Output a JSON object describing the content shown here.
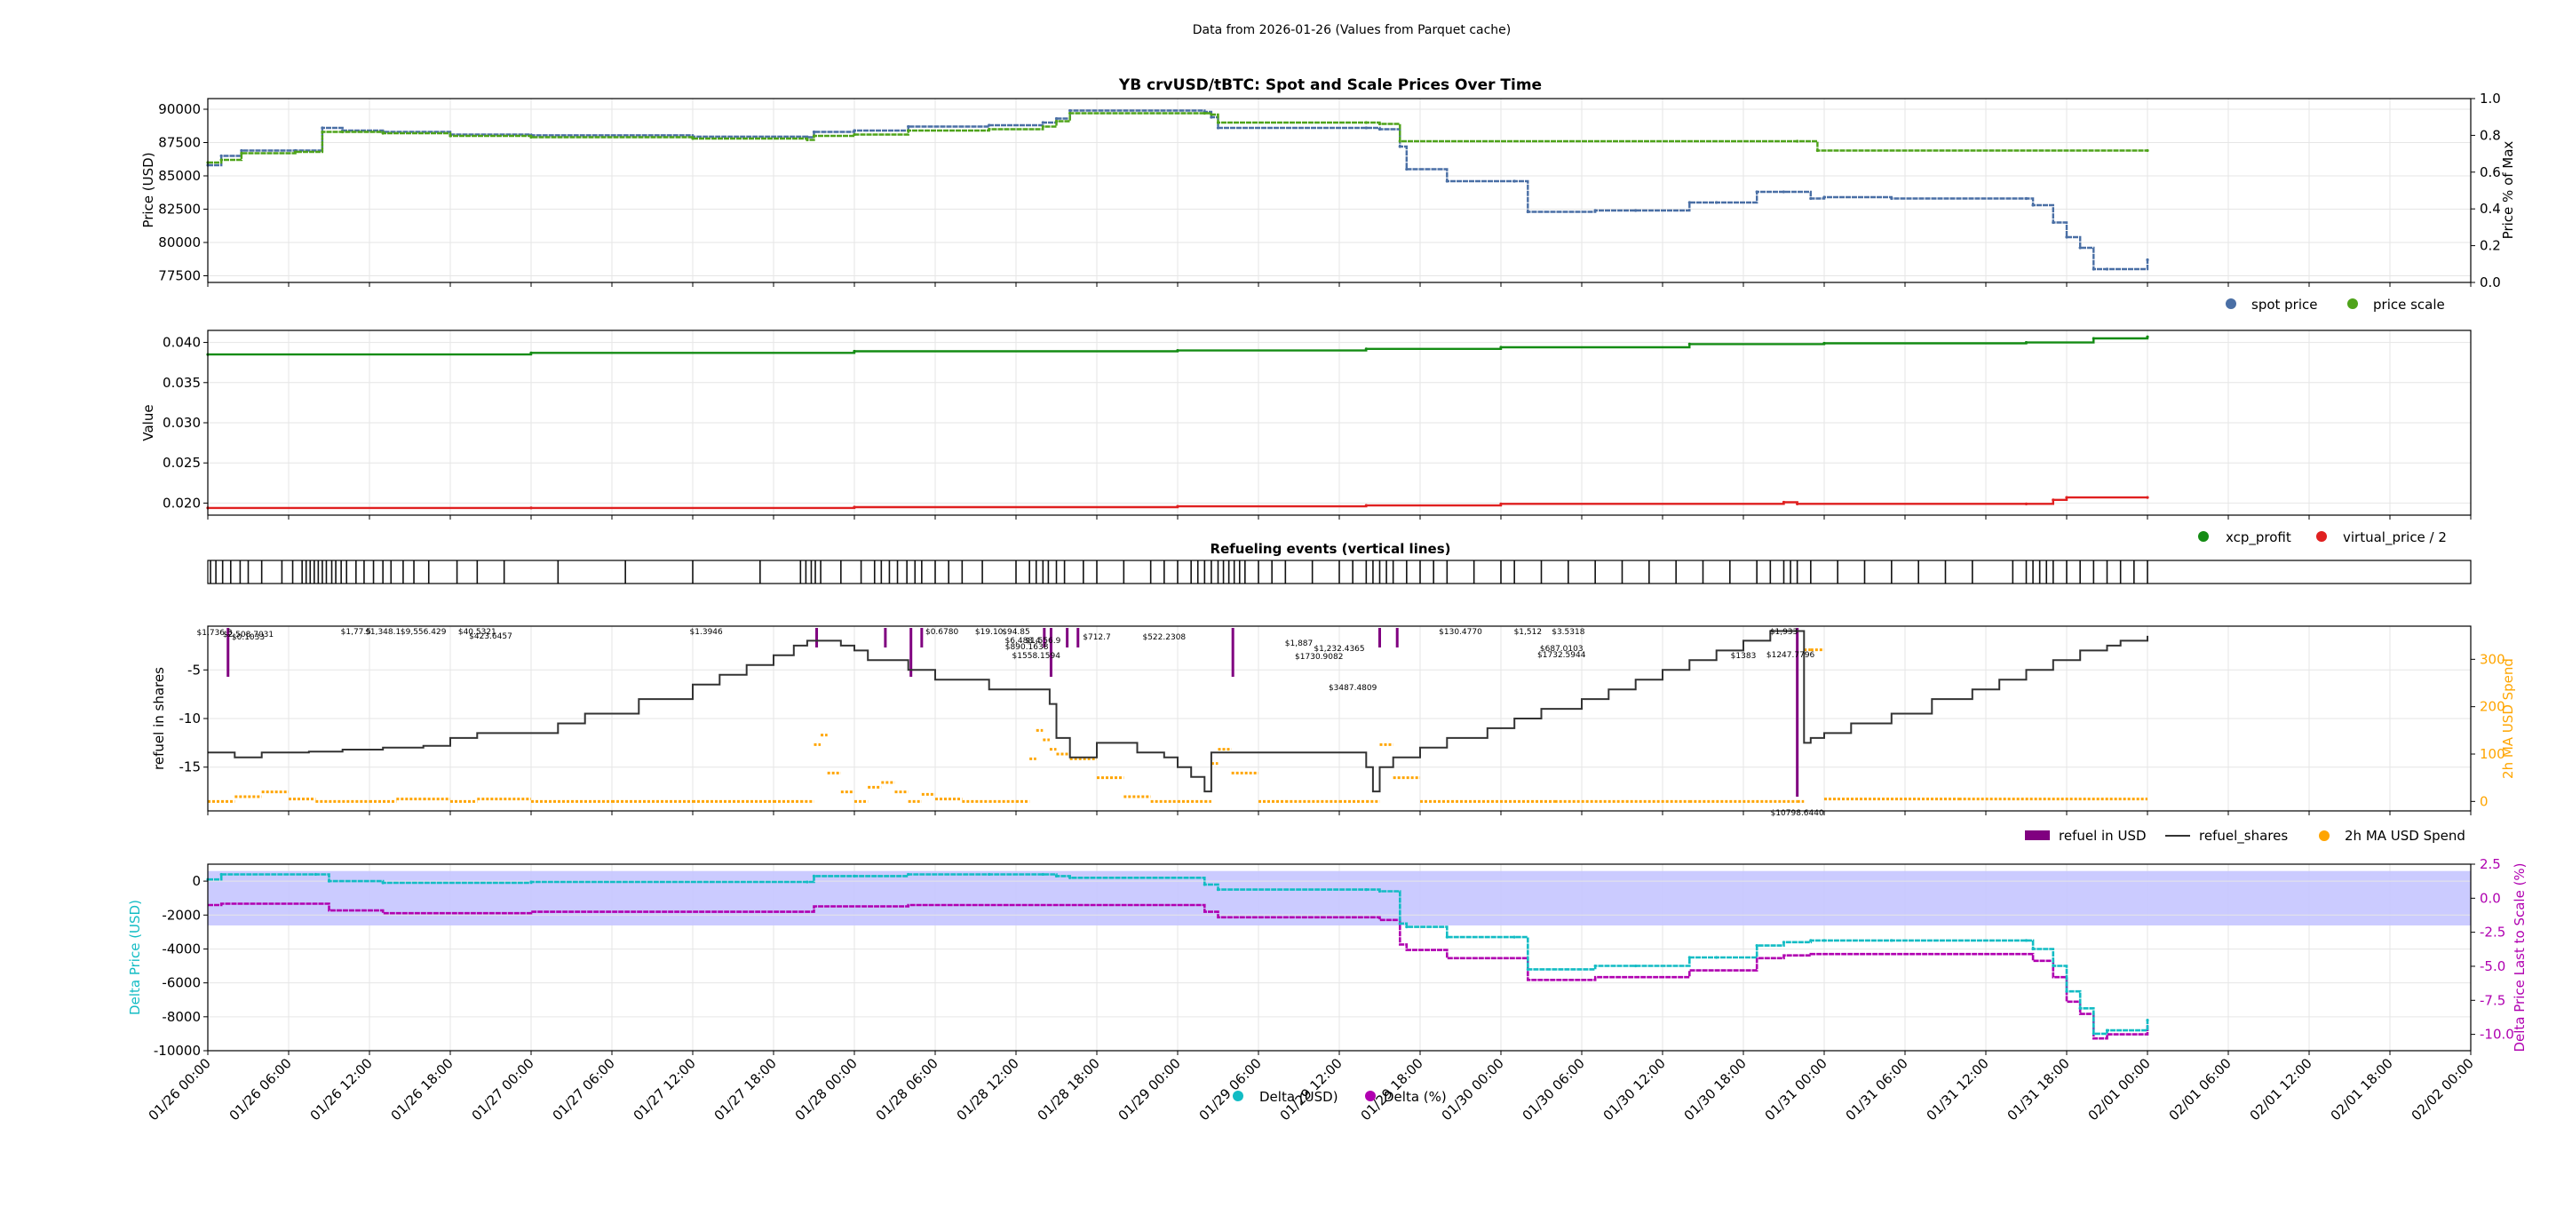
{
  "figure": {
    "suptitle": "Data from 2026-01-26 (Values from Parquet cache)",
    "colors": {
      "spot": "#4a6fa5",
      "scale": "#4fa31a",
      "xcp": "#148c14",
      "vp": "#e02020",
      "refuel_usd": "#800080",
      "refuel_shares": "#333333",
      "ma": "#ffa500",
      "delta_usd": "#12bcc4",
      "delta_pct": "#b000b0",
      "band": "#c8c8ff"
    }
  },
  "x_axis": {
    "ticks": [
      "01/26 00:00",
      "01/26 06:00",
      "01/26 12:00",
      "01/26 18:00",
      "01/27 00:00",
      "01/27 06:00",
      "01/27 12:00",
      "01/27 18:00",
      "01/28 00:00",
      "01/28 06:00",
      "01/28 12:00",
      "01/28 18:00",
      "01/29 00:00",
      "01/29 06:00",
      "01/29 12:00",
      "01/29 18:00",
      "01/30 00:00",
      "01/30 06:00",
      "01/30 12:00",
      "01/30 18:00",
      "01/31 00:00",
      "01/31 06:00",
      "01/31 12:00",
      "01/31 18:00",
      "02/01 00:00",
      "02/01 06:00",
      "02/01 12:00",
      "02/01 18:00",
      "02/02 00:00"
    ],
    "range_hours": [
      0,
      168
    ],
    "data_end_hours": 144
  },
  "chart_data": [
    {
      "type": "scatter",
      "title": "YB crvUSD/tBTC: Spot and Scale Prices Over Time",
      "ylabel": "Price (USD)",
      "ylabel_right": "Price % of Max",
      "ylim": [
        77000,
        90800
      ],
      "yticks": [
        "77500",
        "80000",
        "82500",
        "85000",
        "87500",
        "90000"
      ],
      "yticks_right": [
        "0.0",
        "0.2",
        "0.4",
        "0.6",
        "0.8",
        "1.0"
      ],
      "legend": [
        "spot price",
        "price scale"
      ],
      "legend_position": "below-right",
      "series": [
        {
          "name": "spot price",
          "x_hours": [
            0,
            1,
            2.5,
            6.5,
            8.5,
            10,
            13,
            18,
            24,
            36,
            44.5,
            45,
            48,
            52,
            58,
            62,
            63,
            64,
            74,
            74.5,
            75,
            86,
            87,
            88.5,
            89,
            92,
            97,
            98,
            103,
            106,
            110,
            112,
            115,
            117,
            119,
            120,
            125,
            135,
            135.5,
            137,
            138,
            139,
            140,
            141,
            144
          ],
          "y": [
            85800,
            86500,
            86900,
            86900,
            88600,
            88400,
            88300,
            88100,
            88050,
            87950,
            87900,
            88300,
            88400,
            88700,
            88800,
            89000,
            89300,
            89900,
            89800,
            89400,
            88600,
            88600,
            88500,
            87200,
            85500,
            84600,
            84600,
            82300,
            82400,
            82400,
            83000,
            83000,
            83800,
            83800,
            83300,
            83400,
            83300,
            83300,
            82800,
            81500,
            80400,
            79600,
            78000,
            78000,
            78700
          ]
        },
        {
          "name": "price scale",
          "x_hours": [
            0,
            1,
            2.5,
            6.5,
            8.5,
            10,
            13,
            18,
            24,
            36,
            44.5,
            45,
            48,
            52,
            58,
            62,
            63,
            64,
            74,
            74.5,
            75,
            86,
            87,
            88.5,
            118,
            119.5,
            144
          ],
          "y": [
            86000,
            86200,
            86700,
            86800,
            88300,
            88300,
            88200,
            88000,
            87900,
            87800,
            87700,
            88000,
            88100,
            88400,
            88500,
            88700,
            89100,
            89700,
            89700,
            89600,
            89000,
            89000,
            88900,
            87600,
            87600,
            86900,
            86900
          ]
        }
      ]
    },
    {
      "type": "scatter",
      "title": "",
      "ylabel": "Value",
      "ylim": [
        0.0185,
        0.0415
      ],
      "yticks": [
        "0.020",
        "0.025",
        "0.030",
        "0.035",
        "0.040"
      ],
      "legend": [
        "xcp_profit",
        "virtual_price / 2"
      ],
      "legend_position": "below-right",
      "series": [
        {
          "name": "xcp_profit",
          "x_hours": [
            0,
            24,
            48,
            72,
            86,
            96,
            110,
            120,
            135,
            140,
            144
          ],
          "y": [
            0.0385,
            0.0387,
            0.0389,
            0.039,
            0.0392,
            0.0394,
            0.0398,
            0.0399,
            0.04,
            0.0405,
            0.0407
          ]
        },
        {
          "name": "virtual_price / 2",
          "x_hours": [
            0,
            24,
            48,
            72,
            86,
            96,
            117,
            118,
            135,
            137,
            138,
            144
          ],
          "y": [
            0.0194,
            0.0194,
            0.0195,
            0.0196,
            0.0197,
            0.0199,
            0.0201,
            0.0199,
            0.0199,
            0.0204,
            0.0207,
            0.0207
          ]
        }
      ]
    },
    {
      "type": "event",
      "title": "Refueling events (vertical lines)",
      "events_hours": [
        0.2,
        0.6,
        1.1,
        1.7,
        2.4,
        3.0,
        4.0,
        5.5,
        6.3,
        7.0,
        7.3,
        7.6,
        7.9,
        8.2,
        8.5,
        8.8,
        9.2,
        9.5,
        9.9,
        10.3,
        11.0,
        11.6,
        12.3,
        13.0,
        13.6,
        14.5,
        15.3,
        16.4,
        18.5,
        20.0,
        22.0,
        26.0,
        31.0,
        36.0,
        41.0,
        44.0,
        44.4,
        44.8,
        45.1,
        45.5,
        47.0,
        48.5,
        49.5,
        50.0,
        50.6,
        51.2,
        51.9,
        52.5,
        53.0,
        54.0,
        55.0,
        56.0,
        57.5,
        60.0,
        61.0,
        61.5,
        62.0,
        62.4,
        63.0,
        63.6,
        65.0,
        66.0,
        68.0,
        70.0,
        71.0,
        72.0,
        73.0,
        73.5,
        74.0,
        74.5,
        75.0,
        75.4,
        75.8,
        76.2,
        76.6,
        77.0,
        78.0,
        79.0,
        80.0,
        82.0,
        84.0,
        85.0,
        86.0,
        86.5,
        87.0,
        87.5,
        88.0,
        89.0,
        90.0,
        91.0,
        92.0,
        94.0,
        96.0,
        97.0,
        99.0,
        101.0,
        103.0,
        105.0,
        107.0,
        109.0,
        111.0,
        113.0,
        115.0,
        116.0,
        117.0,
        117.5,
        118.0,
        119.0,
        121.0,
        123.0,
        125.0,
        127.0,
        129.0,
        131.0,
        134.0,
        135.0,
        135.5,
        136.0,
        136.5,
        137.0,
        138.0,
        139.0,
        140.0,
        141.0,
        142.0,
        143.0,
        144.0
      ]
    },
    {
      "type": "line",
      "title": "",
      "ylabel": "refuel in shares",
      "ylabel_right": "2h MA USD Spend",
      "ylim": [
        -19.5,
        -0.5
      ],
      "ylim_right": [
        -20,
        370
      ],
      "yticks": [
        "-15",
        "-10",
        "-5"
      ],
      "yticks_right": [
        "0",
        "100",
        "200",
        "300"
      ],
      "legend": [
        "refuel in USD",
        "refuel_shares",
        "2h MA USD Spend"
      ],
      "legend_position": "below-right",
      "annotations": [
        "$1,736.3",
        "$2,508.7031",
        "$0.1033",
        "$1,77.5",
        "$1,348.1",
        "$9,556.429",
        "$40.5321",
        "$423.6457",
        "$1.3946",
        "$0.6780",
        "$19.10",
        "$94.85",
        "$6,488.4",
        "$890.1638",
        "$1558.1594",
        "$1,556.9",
        "$712.7",
        "$522.2308",
        "$1,887",
        "$1,232.4365",
        "$1730.9082",
        "$3487.4809",
        "$130.4770",
        "$1,512",
        "$3.5318",
        "$687.0103",
        "$1732.5944",
        "$1383",
        "$1,933",
        "$1247.7796",
        "$10798.6440"
      ],
      "series": [
        {
          "name": "refuel_shares",
          "x_hours": [
            0,
            2,
            4,
            7.5,
            10,
            13,
            16,
            18,
            20,
            26,
            28,
            32,
            36,
            38,
            40,
            42,
            43.5,
            44.5,
            45,
            47,
            48,
            49,
            52,
            54,
            56,
            58,
            60,
            62,
            62.5,
            63,
            64,
            66,
            69,
            70,
            71,
            72,
            73,
            74,
            74.5,
            75,
            75.5,
            76,
            77,
            80,
            82,
            85,
            86,
            86.5,
            87,
            88,
            90,
            92,
            95,
            97,
            99,
            102,
            104,
            106,
            108,
            110,
            112,
            114,
            116,
            118,
            118.5,
            119,
            120,
            122,
            125,
            128,
            131,
            133,
            135,
            137,
            139,
            141,
            142,
            144
          ],
          "y": [
            -13.5,
            -14,
            -13.5,
            -13.4,
            -13.2,
            -13,
            -12.8,
            -12,
            -11.5,
            -10.5,
            -9.5,
            -8,
            -6.5,
            -5.5,
            -4.5,
            -3.5,
            -2.5,
            -2,
            -2,
            -2.5,
            -3,
            -4,
            -5,
            -6,
            -6,
            -7,
            -7,
            -7,
            -8.5,
            -12,
            -14,
            -12.5,
            -13.5,
            -13.5,
            -14,
            -15,
            -16,
            -17.5,
            -13.5,
            -13.5,
            -13.5,
            -13.5,
            -13.5,
            -13.5,
            -13.5,
            -13.5,
            -15,
            -17.5,
            -15,
            -14,
            -13,
            -12,
            -11,
            -10,
            -9,
            -8,
            -7,
            -6,
            -5,
            -4,
            -3,
            -2,
            -1,
            -1,
            -12.5,
            -12,
            -11.5,
            -10.5,
            -9.5,
            -8,
            -7,
            -6,
            -5,
            -4,
            -3,
            -2.5,
            -2,
            -1.5
          ]
        },
        {
          "name": "2h MA USD Spend",
          "x_hours": [
            0,
            2,
            4,
            6,
            8,
            12,
            14,
            16,
            18,
            20,
            24,
            30,
            36,
            42,
            44,
            45,
            45.5,
            46,
            47,
            48,
            49,
            50,
            51,
            52,
            53,
            54,
            56,
            58,
            60,
            61,
            61.5,
            62,
            62.5,
            63,
            64,
            66,
            68,
            70,
            72,
            73,
            74,
            74.5,
            75,
            76,
            78,
            80,
            84,
            86,
            87,
            88,
            90,
            100,
            110,
            118,
            118.5,
            119,
            120,
            130,
            144
          ],
          "y": [
            0,
            10,
            20,
            5,
            0,
            0,
            5,
            5,
            0,
            5,
            0,
            0,
            0,
            0,
            0,
            120,
            140,
            60,
            20,
            0,
            30,
            40,
            20,
            0,
            15,
            5,
            0,
            0,
            0,
            90,
            150,
            130,
            110,
            100,
            90,
            50,
            10,
            0,
            0,
            0,
            0,
            80,
            110,
            60,
            0,
            0,
            0,
            0,
            120,
            50,
            0,
            0,
            0,
            0,
            320,
            320,
            5,
            5,
            5
          ]
        }
      ],
      "refuel_usd_bars_hours": [
        1.5,
        45.2,
        50.3,
        52.2,
        53.0,
        62.1,
        62.6,
        63.8,
        64.6,
        76.1,
        87.0,
        88.3,
        118.0
      ]
    },
    {
      "type": "line",
      "title": "",
      "ylabel": "Delta Price (USD)",
      "ylabel_right": "Delta Price Last to Scale (%)",
      "ylim": [
        -10000,
        1000
      ],
      "ylim_right": [
        -11.2,
        2.5
      ],
      "yticks": [
        "-10000",
        "-8000",
        "-6000",
        "-4000",
        "-2000",
        "0"
      ],
      "yticks_right": [
        "-10.0",
        "-7.5",
        "-5.0",
        "-2.5",
        "0.0",
        "2.5"
      ],
      "band_percent": [
        -2,
        2
      ],
      "legend": [
        "Delta (USD)",
        "Delta (%)"
      ],
      "legend_position": "bottom-center",
      "series": [
        {
          "name": "Delta (USD)",
          "x_hours": [
            0,
            1,
            8,
            9,
            13,
            24,
            44.5,
            45,
            48,
            52,
            58,
            62,
            63,
            64,
            74,
            75,
            86,
            87,
            88.5,
            89,
            92,
            97,
            98,
            103,
            106,
            110,
            112,
            115,
            117,
            119,
            120,
            125,
            135,
            135.5,
            137,
            138,
            139,
            140,
            141,
            144
          ],
          "y": [
            100,
            400,
            400,
            0,
            -100,
            -50,
            -50,
            300,
            300,
            400,
            400,
            400,
            300,
            200,
            -200,
            -500,
            -500,
            -600,
            -2500,
            -2700,
            -3300,
            -3300,
            -5200,
            -5000,
            -5000,
            -4500,
            -4500,
            -3800,
            -3600,
            -3500,
            -3500,
            -3500,
            -3500,
            -4000,
            -5000,
            -6500,
            -7500,
            -9000,
            -8800,
            -8200
          ]
        },
        {
          "name": "Delta (%)",
          "x_hours": [
            0,
            1,
            8,
            9,
            13,
            24,
            44.5,
            45,
            48,
            52,
            58,
            62,
            63,
            64,
            74,
            75,
            86,
            87,
            88.5,
            89,
            92,
            97,
            98,
            103,
            106,
            110,
            112,
            115,
            117,
            119,
            120,
            125,
            135,
            135.5,
            137,
            138,
            139,
            140,
            141,
            144
          ],
          "y": [
            -0.5,
            -0.4,
            -0.4,
            -0.9,
            -1.1,
            -1.0,
            -1.0,
            -0.6,
            -0.6,
            -0.5,
            -0.5,
            -0.5,
            -0.5,
            -0.5,
            -1.0,
            -1.4,
            -1.4,
            -1.6,
            -3.4,
            -3.8,
            -4.4,
            -4.4,
            -6.0,
            -5.8,
            -5.8,
            -5.3,
            -5.3,
            -4.4,
            -4.2,
            -4.1,
            -4.1,
            -4.1,
            -4.1,
            -4.6,
            -5.8,
            -7.6,
            -8.5,
            -10.3,
            -10.0,
            -9.3
          ]
        }
      ]
    }
  ]
}
